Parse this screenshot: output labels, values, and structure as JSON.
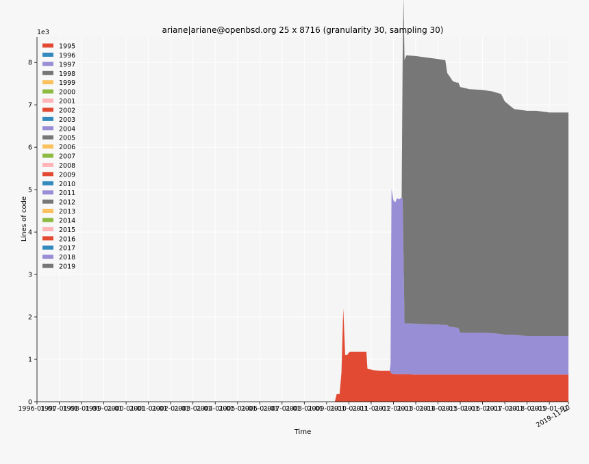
{
  "chart_data": {
    "type": "area",
    "title": "ariane|ariane@openbsd.org 25 x 8716 (granularity 30, sampling 30)",
    "xlabel": "Time",
    "ylabel": "Lines of code",
    "y_multiplier_label": "1e3",
    "ylim": [
      0,
      8600
    ],
    "xlim": [
      "1996-01-01",
      "2019-11-10"
    ],
    "y_ticks": [
      0,
      1,
      2,
      3,
      4,
      5,
      6,
      7,
      8
    ],
    "x_ticks": [
      "1996-01-01",
      "1997-01-01",
      "1998-01-01",
      "1999-01-01",
      "2000-01-01",
      "2001-01-01",
      "2002-01-01",
      "2003-01-01",
      "2004-01-01",
      "2005-01-01",
      "2006-01-01",
      "2007-01-01",
      "2008-01-01",
      "2009-01-01",
      "2010-01-01",
      "2011-01-01",
      "2012-01-01",
      "2013-01-01",
      "2014-01-01",
      "2015-01-01",
      "2016-01-01",
      "2017-01-01",
      "2018-01-01",
      "2019-01-01"
    ],
    "x_end_label": "2019-11-10",
    "grid": true,
    "legend_position": "top-left",
    "legend": [
      "1995",
      "1996",
      "1997",
      "1998",
      "1999",
      "2000",
      "2001",
      "2002",
      "2003",
      "2004",
      "2005",
      "2006",
      "2007",
      "2008",
      "2009",
      "2010",
      "2011",
      "2012",
      "2013",
      "2014",
      "2015",
      "2016",
      "2017",
      "2018",
      "2019"
    ],
    "legend_colors": [
      "#e24a33",
      "#348abd",
      "#988ed5",
      "#777777",
      "#fbc15e",
      "#8eba42",
      "#ffb5b8",
      "#e24a33",
      "#348abd",
      "#988ed5",
      "#777777",
      "#fbc15e",
      "#8eba42",
      "#ffb5b8",
      "#e24a33",
      "#348abd",
      "#988ed5",
      "#777777",
      "#fbc15e",
      "#8eba42",
      "#ffb5b8",
      "#e24a33",
      "#348abd",
      "#988ed5",
      "#777777"
    ],
    "series": [
      {
        "name": "2009",
        "color": "#e24a33",
        "points": [
          [
            "2009-05-15",
            0
          ],
          [
            "2009-06-15",
            180
          ],
          [
            "2009-08-01",
            180
          ],
          [
            "2009-09-01",
            680
          ],
          [
            "2009-10-01",
            2200
          ],
          [
            "2009-11-01",
            1100
          ],
          [
            "2009-12-01",
            1100
          ],
          [
            "2010-01-15",
            1180
          ],
          [
            "2010-06-01",
            1180
          ],
          [
            "2010-10-15",
            1180
          ],
          [
            "2010-11-01",
            780
          ],
          [
            "2011-01-01",
            760
          ],
          [
            "2011-02-01",
            740
          ],
          [
            "2011-06-01",
            730
          ],
          [
            "2011-11-01",
            730
          ],
          [
            "2011-12-01",
            670
          ],
          [
            "2012-01-01",
            650
          ],
          [
            "2012-06-01",
            650
          ],
          [
            "2013-01-01",
            640
          ],
          [
            "2014-01-01",
            640
          ],
          [
            "2015-01-01",
            640
          ],
          [
            "2016-01-01",
            640
          ],
          [
            "2017-01-01",
            640
          ],
          [
            "2018-01-01",
            640
          ],
          [
            "2019-01-01",
            640
          ],
          [
            "2019-11-10",
            640
          ]
        ]
      },
      {
        "name": "2011",
        "color": "#988ed5",
        "points": [
          [
            "2011-11-01",
            0
          ],
          [
            "2011-11-15",
            180
          ],
          [
            "2011-12-01",
            4350
          ],
          [
            "2012-01-01",
            4100
          ],
          [
            "2012-02-01",
            4050
          ],
          [
            "2012-03-01",
            4150
          ],
          [
            "2012-04-01",
            4120
          ],
          [
            "2012-05-01",
            4150
          ],
          [
            "2012-06-01",
            4150
          ],
          [
            "2012-07-01",
            1200
          ],
          [
            "2013-01-01",
            1200
          ],
          [
            "2013-06-01",
            1190
          ],
          [
            "2014-01-01",
            1180
          ],
          [
            "2014-06-01",
            1170
          ],
          [
            "2014-07-01",
            1130
          ],
          [
            "2014-12-01",
            1100
          ],
          [
            "2015-01-01",
            990
          ],
          [
            "2016-01-01",
            990
          ],
          [
            "2016-06-01",
            980
          ],
          [
            "2016-10-01",
            960
          ],
          [
            "2017-01-01",
            940
          ],
          [
            "2017-06-01",
            940
          ],
          [
            "2018-01-01",
            910
          ],
          [
            "2019-01-01",
            910
          ],
          [
            "2019-11-10",
            910
          ]
        ]
      },
      {
        "name": "2012",
        "color": "#777777",
        "points": [
          [
            "2012-05-15",
            0
          ],
          [
            "2012-06-15",
            6150
          ],
          [
            "2012-08-01",
            6320
          ],
          [
            "2013-01-01",
            6310
          ],
          [
            "2013-06-01",
            6290
          ],
          [
            "2014-01-01",
            6260
          ],
          [
            "2014-05-01",
            6240
          ],
          [
            "2014-06-01",
            5940
          ],
          [
            "2014-07-01",
            5920
          ],
          [
            "2014-09-01",
            5800
          ],
          [
            "2014-11-01",
            5780
          ],
          [
            "2015-01-01",
            5790
          ],
          [
            "2015-06-01",
            5740
          ],
          [
            "2016-01-01",
            5720
          ],
          [
            "2016-06-01",
            5700
          ],
          [
            "2016-11-01",
            5660
          ],
          [
            "2017-01-01",
            5500
          ],
          [
            "2017-06-01",
            5320
          ],
          [
            "2018-01-01",
            5310
          ],
          [
            "2018-06-01",
            5310
          ],
          [
            "2019-01-01",
            5270
          ],
          [
            "2019-11-10",
            5270
          ]
        ]
      }
    ]
  }
}
